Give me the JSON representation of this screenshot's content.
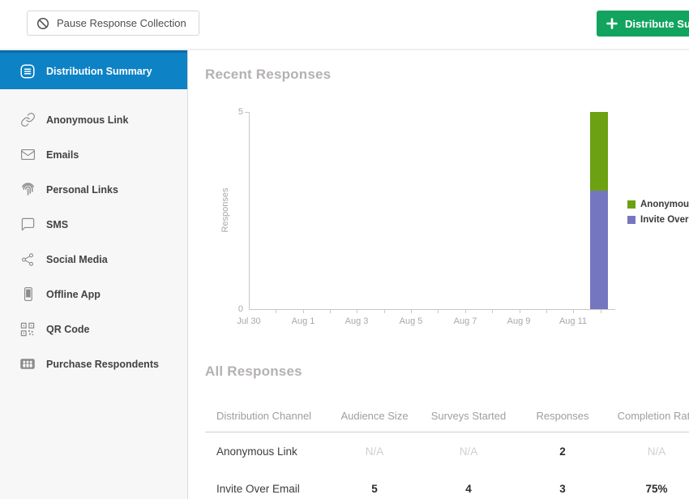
{
  "toolbar": {
    "pause_button": "Pause Response Collection",
    "distribute_button": "Distribute Survey"
  },
  "sidebar": {
    "active_item": "Distribution Summary",
    "items": [
      "Anonymous Link",
      "Emails",
      "Personal Links",
      "SMS",
      "Social Media",
      "Offline App",
      "QR Code",
      "Purchase Respondents"
    ]
  },
  "recent_responses": {
    "title": "Recent Responses"
  },
  "chart_data": {
    "type": "bar",
    "stacked": true,
    "title": "Recent Responses",
    "ylabel": "Responses",
    "ylim": [
      0,
      5
    ],
    "y_tick_labels": [
      "5",
      "0"
    ],
    "x_tick_labels": [
      "Jul 30",
      "Aug 1",
      "Aug 3",
      "Aug 5",
      "Aug 7",
      "Aug 9",
      "Aug 11"
    ],
    "x_range": [
      "Jul 30",
      "Aug 12"
    ],
    "bar": {
      "date": "Aug 12",
      "segments": [
        {
          "name": "Anonymous",
          "value": 2,
          "color": "#6ba112",
          "position": "top"
        },
        {
          "name": "Invite Over Email",
          "value": 3,
          "color": "#7477bf",
          "position": "bottom"
        }
      ]
    },
    "legend": [
      {
        "label": "Anonymous Link",
        "color": "#6ba112"
      },
      {
        "label": "Invite Over Email",
        "color": "#7477bf"
      }
    ],
    "legend_position": "right",
    "grid": false
  },
  "all_responses": {
    "title": "All Responses",
    "table": {
      "headers": [
        "Distribution Channel",
        "Audience Size",
        "Surveys Started",
        "Responses",
        "Completion Rate"
      ],
      "rows": [
        {
          "channel": "Anonymous Link",
          "audience_size": "N/A",
          "surveys_started": "N/A",
          "responses": "2",
          "completion_rate": "N/A"
        },
        {
          "channel": "Invite Over Email",
          "audience_size": "5",
          "surveys_started": "4",
          "responses": "3",
          "completion_rate": "75%"
        }
      ]
    }
  },
  "colors": {
    "active_nav_blue": "#0d82c5",
    "distribute_green": "#12a45e",
    "bar_green": "#6ba112",
    "bar_purple": "#7477bf",
    "heading_gray": "#b5b1b1"
  }
}
